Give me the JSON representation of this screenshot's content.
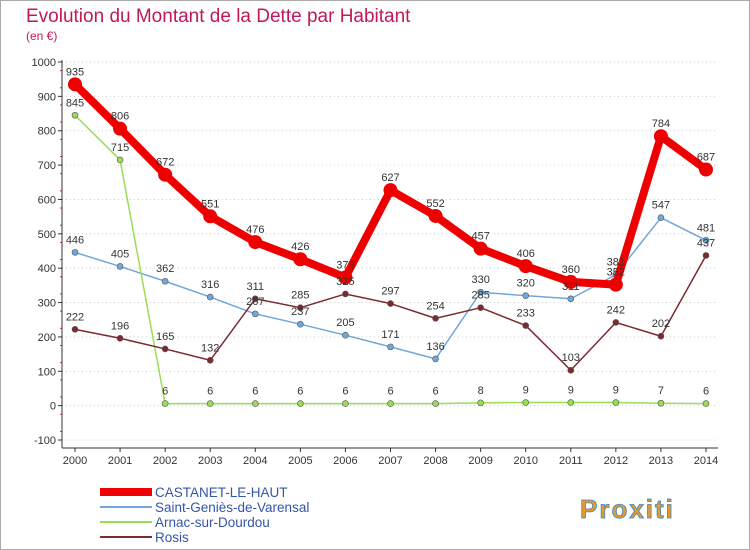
{
  "chart_data": {
    "type": "line",
    "title": "Evolution du Montant de la Dette par Habitant",
    "subtitle": "(en €)",
    "x": [
      "2000",
      "2001",
      "2002",
      "2003",
      "2004",
      "2005",
      "2006",
      "2007",
      "2008",
      "2009",
      "2010",
      "2011",
      "2012",
      "2013",
      "2014"
    ],
    "ylim": [
      -100,
      1000
    ],
    "yticks": [
      "-100",
      "0",
      "100",
      "200",
      "300",
      "400",
      "500",
      "600",
      "700",
      "800",
      "900",
      "1000"
    ],
    "grid": "horizontal-dotted",
    "legend_position": "bottom-left",
    "series": [
      {
        "name": "CASTANET-LE-HAUT",
        "color": "#ee0000",
        "values": [
          935,
          806,
          672,
          551,
          476,
          426,
          373,
          627,
          552,
          457,
          406,
          360,
          352,
          784,
          687
        ],
        "labels": [
          "935",
          "806",
          "672",
          "551",
          "476",
          "426",
          "373",
          "627",
          "552",
          "457",
          "406",
          "360",
          "352",
          "784",
          "687"
        ]
      },
      {
        "name": "Saint-Geniès-de-Varensal",
        "color": "#6fa8dc",
        "values": [
          446,
          405,
          362,
          316,
          267,
          237,
          205,
          171,
          136,
          330,
          320,
          311,
          381,
          547,
          481
        ],
        "labels": [
          "446",
          "405",
          "362",
          "316",
          "267",
          "237",
          "205",
          "171",
          "136",
          "330",
          "320",
          "311",
          "381",
          "547",
          "481"
        ]
      },
      {
        "name": "Arnac-sur-Dourdou",
        "color": "#99dd55",
        "values": [
          845,
          715,
          6,
          6,
          6,
          6,
          6,
          6,
          6,
          8,
          9,
          9,
          9,
          7,
          6
        ],
        "labels": [
          "845",
          "715",
          "6",
          "6",
          "6",
          "6",
          "6",
          "6",
          "6",
          "8",
          "9",
          "9",
          "9",
          "7",
          "6"
        ]
      },
      {
        "name": "Rosis",
        "color": "#7b2a30",
        "values": [
          222,
          196,
          165,
          132,
          311,
          285,
          325,
          297,
          254,
          285,
          233,
          103,
          242,
          202,
          437
        ],
        "labels": [
          "222",
          "196",
          "165",
          "132",
          "311",
          "285",
          "325",
          "297",
          "254",
          "285",
          "233",
          "103",
          "242",
          "202",
          "437"
        ]
      }
    ]
  },
  "logo": {
    "text": "Proxiti"
  }
}
